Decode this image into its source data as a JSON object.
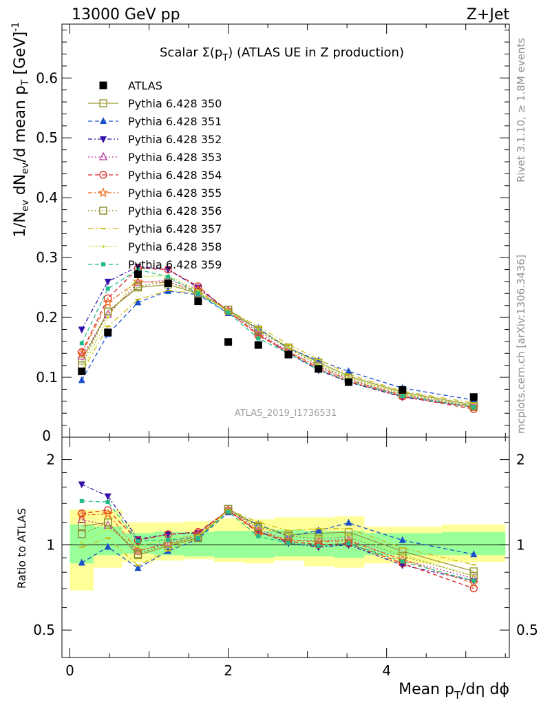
{
  "header": {
    "left": "13000 GeV pp",
    "right": "Z+Jet"
  },
  "title_main": "Scalar Σ(p",
  "title_sub": "T",
  "title_rest": ") (ATLAS UE in Z production)",
  "side_rivet": "Rivet 3.1.10, ≥ 1.8M events",
  "side_mcplots": "mcplots.cern.ch [arXiv:1306.3436]",
  "watermark": "ATLAS_2019_I1736531",
  "ylabel_main": "1/N",
  "ylabel_ratio": "Ratio to ATLAS",
  "xlabel": "Mean p",
  "chart_data": {
    "type": "scatter",
    "x": [
      0.15,
      0.48,
      0.86,
      1.24,
      1.62,
      2.0,
      2.38,
      2.76,
      3.14,
      3.52,
      4.2,
      5.1
    ],
    "xlim": [
      -0.1,
      5.55
    ],
    "ylim_main": [
      0,
      0.69
    ],
    "ylim_ratio": [
      0.4,
      2.4
    ],
    "ratio_log_scale": true,
    "yticks_main": [
      "0.1",
      "0.2",
      "0.3",
      "0.4",
      "0.5",
      "0.6"
    ],
    "xticks": [
      "0",
      "2",
      "4"
    ],
    "ratio_ticks": [
      "0.5",
      "1",
      "2"
    ],
    "band_edges": [
      0,
      0.3,
      0.66,
      1.06,
      1.44,
      1.82,
      2.2,
      2.58,
      2.96,
      3.34,
      3.72,
      4.7,
      5.5
    ],
    "band_green": [
      [
        0.86,
        1.18
      ],
      [
        0.92,
        1.16
      ],
      [
        0.93,
        1.1
      ],
      [
        0.92,
        1.11
      ],
      [
        0.91,
        1.11
      ],
      [
        0.9,
        1.12
      ],
      [
        0.9,
        1.12
      ],
      [
        0.91,
        1.13
      ],
      [
        0.91,
        1.12
      ],
      [
        0.9,
        1.12
      ],
      [
        0.92,
        1.1
      ],
      [
        0.92,
        1.11
      ]
    ],
    "band_yellow": [
      [
        0.69,
        1.33
      ],
      [
        0.83,
        1.33
      ],
      [
        0.87,
        1.2
      ],
      [
        0.88,
        1.2
      ],
      [
        0.89,
        1.21
      ],
      [
        0.87,
        1.24
      ],
      [
        0.86,
        1.23
      ],
      [
        0.88,
        1.25
      ],
      [
        0.84,
        1.25
      ],
      [
        0.83,
        1.26
      ],
      [
        0.86,
        1.16
      ],
      [
        0.87,
        1.18
      ]
    ],
    "data": {
      "name": "ATLAS",
      "values": [
        0.11,
        0.175,
        0.272,
        0.257,
        0.227,
        0.159,
        0.154,
        0.138,
        0.114,
        0.092,
        0.079,
        0.067
      ]
    },
    "series": [
      {
        "name": "Pythia 6.428 350",
        "color": "#999933",
        "marker": "square-open",
        "dash": "",
        "values": [
          0.128,
          0.21,
          0.25,
          0.255,
          0.24,
          0.213,
          0.18,
          0.15,
          0.125,
          0.102,
          0.075,
          0.054
        ]
      },
      {
        "name": "Pythia 6.428 351",
        "color": "#1a4fcc",
        "marker": "triangle-up",
        "dash": "6,4",
        "values": [
          0.095,
          0.172,
          0.225,
          0.244,
          0.238,
          0.207,
          0.182,
          0.148,
          0.128,
          0.11,
          0.082,
          0.062
        ]
      },
      {
        "name": "Pythia 6.428 352",
        "color": "#3311aa",
        "marker": "triangle-down",
        "dash": "6,3,2,3",
        "values": [
          0.18,
          0.26,
          0.285,
          0.28,
          0.25,
          0.21,
          0.172,
          0.14,
          0.112,
          0.092,
          0.067,
          0.05
        ]
      },
      {
        "name": "Pythia 6.428 353",
        "color": "#bb3399",
        "marker": "triangle-open",
        "dash": "2,3",
        "values": [
          0.135,
          0.205,
          0.258,
          0.262,
          0.248,
          0.212,
          0.175,
          0.143,
          0.118,
          0.096,
          0.07,
          0.051
        ]
      },
      {
        "name": "Pythia 6.428 354",
        "color": "#dd2222",
        "marker": "circle-open",
        "dash": "6,4",
        "values": [
          0.142,
          0.232,
          0.282,
          0.28,
          0.252,
          0.21,
          0.17,
          0.142,
          0.114,
          0.093,
          0.068,
          0.047
        ]
      },
      {
        "name": "Pythia 6.428 355",
        "color": "#ee6611",
        "marker": "star-open",
        "dash": "6,3,2,3",
        "values": [
          0.14,
          0.225,
          0.26,
          0.258,
          0.245,
          0.21,
          0.172,
          0.143,
          0.117,
          0.095,
          0.07,
          0.049
        ]
      },
      {
        "name": "Pythia 6.428 356",
        "color": "#888822",
        "marker": "square-open",
        "dash": "2,3",
        "values": [
          0.12,
          0.21,
          0.252,
          0.26,
          0.24,
          0.213,
          0.178,
          0.148,
          0.12,
          0.098,
          0.072,
          0.052
        ]
      },
      {
        "name": "Pythia 6.428 357",
        "color": "#ccbb11",
        "marker": "dash",
        "dash": "8,4,2,4",
        "values": [
          0.108,
          0.185,
          0.23,
          0.245,
          0.24,
          0.212,
          0.185,
          0.155,
          0.13,
          0.105,
          0.077,
          0.057
        ]
      },
      {
        "name": "Pythia 6.428 358",
        "color": "#bbdd22",
        "marker": "dot",
        "dash": "2,2",
        "values": [
          0.112,
          0.2,
          0.268,
          0.27,
          0.245,
          0.21,
          0.18,
          0.15,
          0.122,
          0.1,
          0.073,
          0.052
        ]
      },
      {
        "name": "Pythia 6.428 359",
        "color": "#22bb88",
        "marker": "square-small",
        "dash": "6,4",
        "values": [
          0.157,
          0.248,
          0.28,
          0.268,
          0.24,
          0.208,
          0.165,
          0.14,
          0.113,
          0.093,
          0.069,
          0.05
        ]
      }
    ]
  }
}
